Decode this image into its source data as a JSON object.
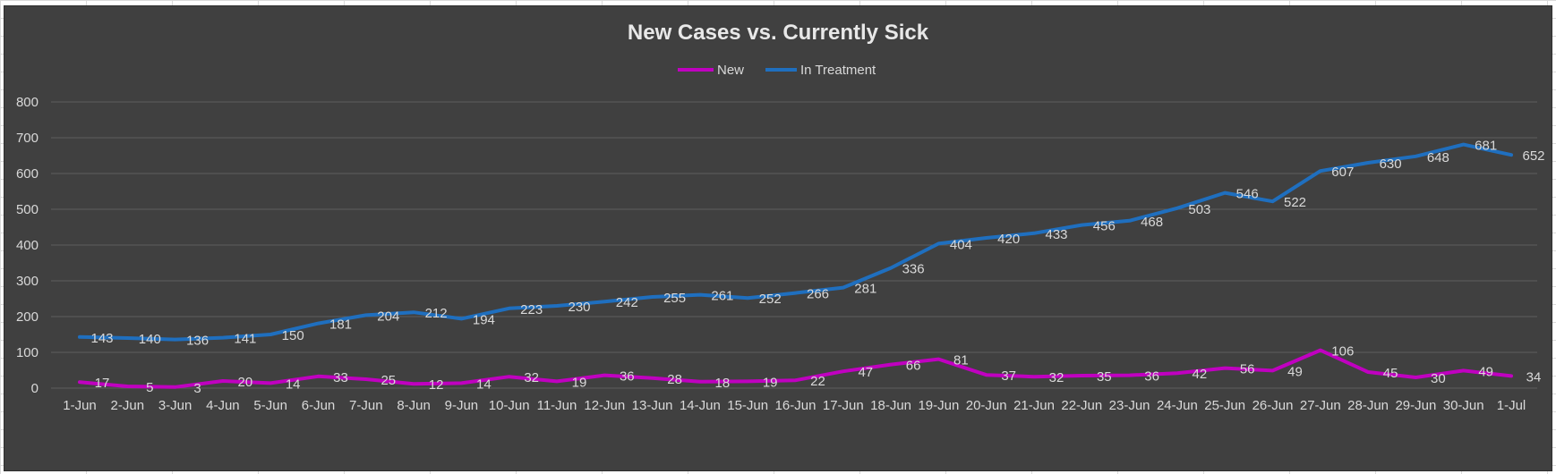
{
  "chart_data": {
    "type": "line",
    "title": "New Cases vs. Currently Sick",
    "legend_position": "top",
    "grid": true,
    "ylim": [
      0,
      800
    ],
    "yticks": [
      0,
      100,
      200,
      300,
      400,
      500,
      600,
      700,
      800
    ],
    "categories": [
      "1-Jun",
      "2-Jun",
      "3-Jun",
      "4-Jun",
      "5-Jun",
      "6-Jun",
      "7-Jun",
      "8-Jun",
      "9-Jun",
      "10-Jun",
      "11-Jun",
      "12-Jun",
      "13-Jun",
      "14-Jun",
      "15-Jun",
      "16-Jun",
      "17-Jun",
      "18-Jun",
      "19-Jun",
      "20-Jun",
      "21-Jun",
      "22-Jun",
      "23-Jun",
      "24-Jun",
      "25-Jun",
      "26-Jun",
      "27-Jun",
      "28-Jun",
      "29-Jun",
      "30-Jun",
      "1-Jul"
    ],
    "series": [
      {
        "name": "New",
        "color": "#c000c0",
        "values": [
          17,
          5,
          3,
          20,
          14,
          33,
          25,
          12,
          14,
          32,
          19,
          36,
          28,
          18,
          19,
          22,
          47,
          66,
          81,
          37,
          32,
          35,
          36,
          42,
          56,
          49,
          106,
          45,
          30,
          49,
          34
        ]
      },
      {
        "name": "In Treatment",
        "color": "#1f6fbf",
        "values": [
          143,
          140,
          136,
          141,
          150,
          181,
          204,
          212,
          194,
          223,
          230,
          242,
          255,
          261,
          252,
          266,
          281,
          336,
          404,
          420,
          433,
          456,
          468,
          503,
          546,
          522,
          607,
          630,
          648,
          681,
          652
        ]
      }
    ]
  }
}
